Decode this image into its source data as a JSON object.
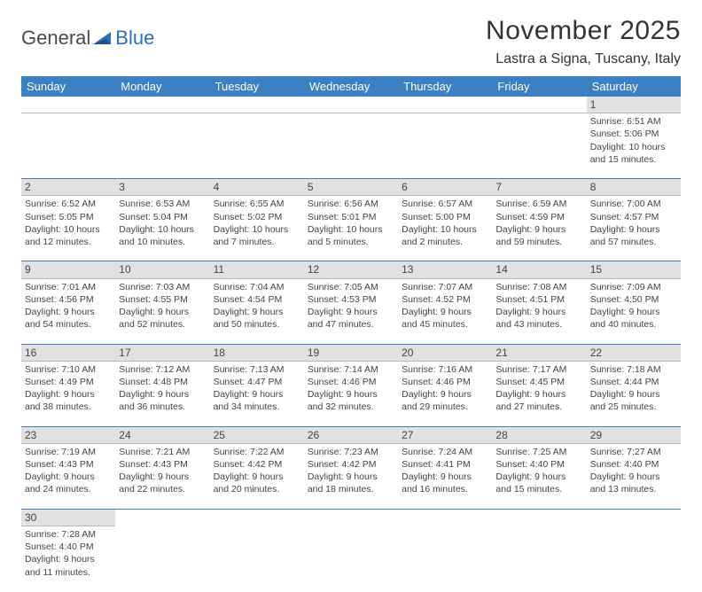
{
  "logo": {
    "word1": "General",
    "word2": "Blue"
  },
  "title": "November 2025",
  "location": "Lastra a Signa, Tuscany, Italy",
  "colors": {
    "header_bg": "#3a80c3",
    "rule": "#3a80c3",
    "daynum_bg": "#e1e1e1"
  },
  "day_headers": [
    "Sunday",
    "Monday",
    "Tuesday",
    "Wednesday",
    "Thursday",
    "Friday",
    "Saturday"
  ],
  "weeks": [
    [
      null,
      null,
      null,
      null,
      null,
      null,
      {
        "n": "1",
        "sr": "Sunrise: 6:51 AM",
        "ss": "Sunset: 5:06 PM",
        "d1": "Daylight: 10 hours",
        "d2": "and 15 minutes."
      }
    ],
    [
      {
        "n": "2",
        "sr": "Sunrise: 6:52 AM",
        "ss": "Sunset: 5:05 PM",
        "d1": "Daylight: 10 hours",
        "d2": "and 12 minutes."
      },
      {
        "n": "3",
        "sr": "Sunrise: 6:53 AM",
        "ss": "Sunset: 5:04 PM",
        "d1": "Daylight: 10 hours",
        "d2": "and 10 minutes."
      },
      {
        "n": "4",
        "sr": "Sunrise: 6:55 AM",
        "ss": "Sunset: 5:02 PM",
        "d1": "Daylight: 10 hours",
        "d2": "and 7 minutes."
      },
      {
        "n": "5",
        "sr": "Sunrise: 6:56 AM",
        "ss": "Sunset: 5:01 PM",
        "d1": "Daylight: 10 hours",
        "d2": "and 5 minutes."
      },
      {
        "n": "6",
        "sr": "Sunrise: 6:57 AM",
        "ss": "Sunset: 5:00 PM",
        "d1": "Daylight: 10 hours",
        "d2": "and 2 minutes."
      },
      {
        "n": "7",
        "sr": "Sunrise: 6:59 AM",
        "ss": "Sunset: 4:59 PM",
        "d1": "Daylight: 9 hours",
        "d2": "and 59 minutes."
      },
      {
        "n": "8",
        "sr": "Sunrise: 7:00 AM",
        "ss": "Sunset: 4:57 PM",
        "d1": "Daylight: 9 hours",
        "d2": "and 57 minutes."
      }
    ],
    [
      {
        "n": "9",
        "sr": "Sunrise: 7:01 AM",
        "ss": "Sunset: 4:56 PM",
        "d1": "Daylight: 9 hours",
        "d2": "and 54 minutes."
      },
      {
        "n": "10",
        "sr": "Sunrise: 7:03 AM",
        "ss": "Sunset: 4:55 PM",
        "d1": "Daylight: 9 hours",
        "d2": "and 52 minutes."
      },
      {
        "n": "11",
        "sr": "Sunrise: 7:04 AM",
        "ss": "Sunset: 4:54 PM",
        "d1": "Daylight: 9 hours",
        "d2": "and 50 minutes."
      },
      {
        "n": "12",
        "sr": "Sunrise: 7:05 AM",
        "ss": "Sunset: 4:53 PM",
        "d1": "Daylight: 9 hours",
        "d2": "and 47 minutes."
      },
      {
        "n": "13",
        "sr": "Sunrise: 7:07 AM",
        "ss": "Sunset: 4:52 PM",
        "d1": "Daylight: 9 hours",
        "d2": "and 45 minutes."
      },
      {
        "n": "14",
        "sr": "Sunrise: 7:08 AM",
        "ss": "Sunset: 4:51 PM",
        "d1": "Daylight: 9 hours",
        "d2": "and 43 minutes."
      },
      {
        "n": "15",
        "sr": "Sunrise: 7:09 AM",
        "ss": "Sunset: 4:50 PM",
        "d1": "Daylight: 9 hours",
        "d2": "and 40 minutes."
      }
    ],
    [
      {
        "n": "16",
        "sr": "Sunrise: 7:10 AM",
        "ss": "Sunset: 4:49 PM",
        "d1": "Daylight: 9 hours",
        "d2": "and 38 minutes."
      },
      {
        "n": "17",
        "sr": "Sunrise: 7:12 AM",
        "ss": "Sunset: 4:48 PM",
        "d1": "Daylight: 9 hours",
        "d2": "and 36 minutes."
      },
      {
        "n": "18",
        "sr": "Sunrise: 7:13 AM",
        "ss": "Sunset: 4:47 PM",
        "d1": "Daylight: 9 hours",
        "d2": "and 34 minutes."
      },
      {
        "n": "19",
        "sr": "Sunrise: 7:14 AM",
        "ss": "Sunset: 4:46 PM",
        "d1": "Daylight: 9 hours",
        "d2": "and 32 minutes."
      },
      {
        "n": "20",
        "sr": "Sunrise: 7:16 AM",
        "ss": "Sunset: 4:46 PM",
        "d1": "Daylight: 9 hours",
        "d2": "and 29 minutes."
      },
      {
        "n": "21",
        "sr": "Sunrise: 7:17 AM",
        "ss": "Sunset: 4:45 PM",
        "d1": "Daylight: 9 hours",
        "d2": "and 27 minutes."
      },
      {
        "n": "22",
        "sr": "Sunrise: 7:18 AM",
        "ss": "Sunset: 4:44 PM",
        "d1": "Daylight: 9 hours",
        "d2": "and 25 minutes."
      }
    ],
    [
      {
        "n": "23",
        "sr": "Sunrise: 7:19 AM",
        "ss": "Sunset: 4:43 PM",
        "d1": "Daylight: 9 hours",
        "d2": "and 24 minutes."
      },
      {
        "n": "24",
        "sr": "Sunrise: 7:21 AM",
        "ss": "Sunset: 4:43 PM",
        "d1": "Daylight: 9 hours",
        "d2": "and 22 minutes."
      },
      {
        "n": "25",
        "sr": "Sunrise: 7:22 AM",
        "ss": "Sunset: 4:42 PM",
        "d1": "Daylight: 9 hours",
        "d2": "and 20 minutes."
      },
      {
        "n": "26",
        "sr": "Sunrise: 7:23 AM",
        "ss": "Sunset: 4:42 PM",
        "d1": "Daylight: 9 hours",
        "d2": "and 18 minutes."
      },
      {
        "n": "27",
        "sr": "Sunrise: 7:24 AM",
        "ss": "Sunset: 4:41 PM",
        "d1": "Daylight: 9 hours",
        "d2": "and 16 minutes."
      },
      {
        "n": "28",
        "sr": "Sunrise: 7:25 AM",
        "ss": "Sunset: 4:40 PM",
        "d1": "Daylight: 9 hours",
        "d2": "and 15 minutes."
      },
      {
        "n": "29",
        "sr": "Sunrise: 7:27 AM",
        "ss": "Sunset: 4:40 PM",
        "d1": "Daylight: 9 hours",
        "d2": "and 13 minutes."
      }
    ],
    [
      {
        "n": "30",
        "sr": "Sunrise: 7:28 AM",
        "ss": "Sunset: 4:40 PM",
        "d1": "Daylight: 9 hours",
        "d2": "and 11 minutes."
      },
      null,
      null,
      null,
      null,
      null,
      null
    ]
  ]
}
